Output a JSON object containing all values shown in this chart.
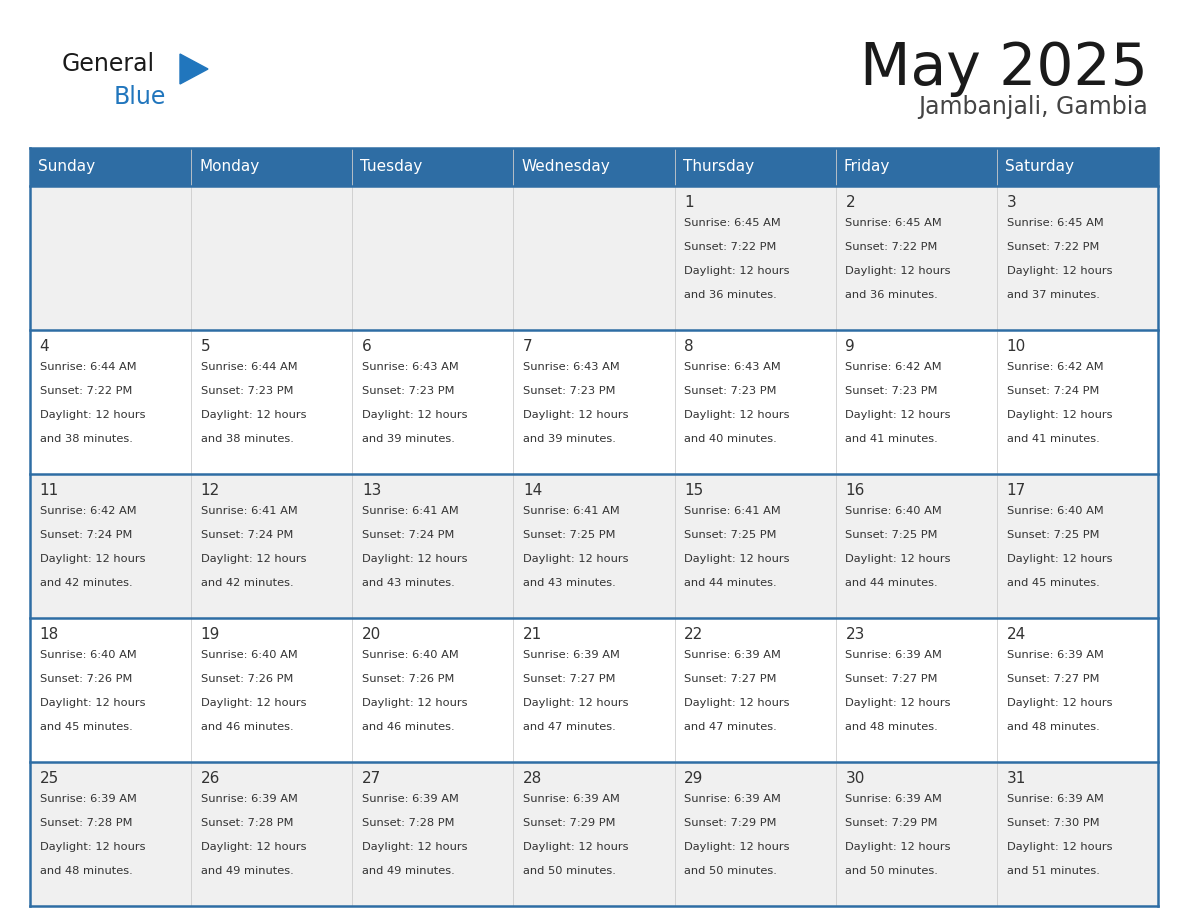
{
  "title": "May 2025",
  "subtitle": "Jambanjali, Gambia",
  "days_of_week": [
    "Sunday",
    "Monday",
    "Tuesday",
    "Wednesday",
    "Thursday",
    "Friday",
    "Saturday"
  ],
  "header_bg": "#2E6DA4",
  "header_text": "#FFFFFF",
  "row_bg_odd": "#F0F0F0",
  "row_bg_even": "#FFFFFF",
  "cell_border": "#2E6DA4",
  "day_number_color": "#333333",
  "info_text_color": "#333333",
  "title_color": "#1a1a1a",
  "subtitle_color": "#444444",
  "logo_general_color": "#1a1a1a",
  "logo_blue_color": "#2176BD",
  "bg_color": "#FFFFFF",
  "calendar_data": [
    {
      "day": 1,
      "col": 4,
      "row": 0,
      "sunrise": "6:45 AM",
      "sunset": "7:22 PM",
      "daylight": "12 hours and 36 minutes."
    },
    {
      "day": 2,
      "col": 5,
      "row": 0,
      "sunrise": "6:45 AM",
      "sunset": "7:22 PM",
      "daylight": "12 hours and 36 minutes."
    },
    {
      "day": 3,
      "col": 6,
      "row": 0,
      "sunrise": "6:45 AM",
      "sunset": "7:22 PM",
      "daylight": "12 hours and 37 minutes."
    },
    {
      "day": 4,
      "col": 0,
      "row": 1,
      "sunrise": "6:44 AM",
      "sunset": "7:22 PM",
      "daylight": "12 hours and 38 minutes."
    },
    {
      "day": 5,
      "col": 1,
      "row": 1,
      "sunrise": "6:44 AM",
      "sunset": "7:23 PM",
      "daylight": "12 hours and 38 minutes."
    },
    {
      "day": 6,
      "col": 2,
      "row": 1,
      "sunrise": "6:43 AM",
      "sunset": "7:23 PM",
      "daylight": "12 hours and 39 minutes."
    },
    {
      "day": 7,
      "col": 3,
      "row": 1,
      "sunrise": "6:43 AM",
      "sunset": "7:23 PM",
      "daylight": "12 hours and 39 minutes."
    },
    {
      "day": 8,
      "col": 4,
      "row": 1,
      "sunrise": "6:43 AM",
      "sunset": "7:23 PM",
      "daylight": "12 hours and 40 minutes."
    },
    {
      "day": 9,
      "col": 5,
      "row": 1,
      "sunrise": "6:42 AM",
      "sunset": "7:23 PM",
      "daylight": "12 hours and 41 minutes."
    },
    {
      "day": 10,
      "col": 6,
      "row": 1,
      "sunrise": "6:42 AM",
      "sunset": "7:24 PM",
      "daylight": "12 hours and 41 minutes."
    },
    {
      "day": 11,
      "col": 0,
      "row": 2,
      "sunrise": "6:42 AM",
      "sunset": "7:24 PM",
      "daylight": "12 hours and 42 minutes."
    },
    {
      "day": 12,
      "col": 1,
      "row": 2,
      "sunrise": "6:41 AM",
      "sunset": "7:24 PM",
      "daylight": "12 hours and 42 minutes."
    },
    {
      "day": 13,
      "col": 2,
      "row": 2,
      "sunrise": "6:41 AM",
      "sunset": "7:24 PM",
      "daylight": "12 hours and 43 minutes."
    },
    {
      "day": 14,
      "col": 3,
      "row": 2,
      "sunrise": "6:41 AM",
      "sunset": "7:25 PM",
      "daylight": "12 hours and 43 minutes."
    },
    {
      "day": 15,
      "col": 4,
      "row": 2,
      "sunrise": "6:41 AM",
      "sunset": "7:25 PM",
      "daylight": "12 hours and 44 minutes."
    },
    {
      "day": 16,
      "col": 5,
      "row": 2,
      "sunrise": "6:40 AM",
      "sunset": "7:25 PM",
      "daylight": "12 hours and 44 minutes."
    },
    {
      "day": 17,
      "col": 6,
      "row": 2,
      "sunrise": "6:40 AM",
      "sunset": "7:25 PM",
      "daylight": "12 hours and 45 minutes."
    },
    {
      "day": 18,
      "col": 0,
      "row": 3,
      "sunrise": "6:40 AM",
      "sunset": "7:26 PM",
      "daylight": "12 hours and 45 minutes."
    },
    {
      "day": 19,
      "col": 1,
      "row": 3,
      "sunrise": "6:40 AM",
      "sunset": "7:26 PM",
      "daylight": "12 hours and 46 minutes."
    },
    {
      "day": 20,
      "col": 2,
      "row": 3,
      "sunrise": "6:40 AM",
      "sunset": "7:26 PM",
      "daylight": "12 hours and 46 minutes."
    },
    {
      "day": 21,
      "col": 3,
      "row": 3,
      "sunrise": "6:39 AM",
      "sunset": "7:27 PM",
      "daylight": "12 hours and 47 minutes."
    },
    {
      "day": 22,
      "col": 4,
      "row": 3,
      "sunrise": "6:39 AM",
      "sunset": "7:27 PM",
      "daylight": "12 hours and 47 minutes."
    },
    {
      "day": 23,
      "col": 5,
      "row": 3,
      "sunrise": "6:39 AM",
      "sunset": "7:27 PM",
      "daylight": "12 hours and 48 minutes."
    },
    {
      "day": 24,
      "col": 6,
      "row": 3,
      "sunrise": "6:39 AM",
      "sunset": "7:27 PM",
      "daylight": "12 hours and 48 minutes."
    },
    {
      "day": 25,
      "col": 0,
      "row": 4,
      "sunrise": "6:39 AM",
      "sunset": "7:28 PM",
      "daylight": "12 hours and 48 minutes."
    },
    {
      "day": 26,
      "col": 1,
      "row": 4,
      "sunrise": "6:39 AM",
      "sunset": "7:28 PM",
      "daylight": "12 hours and 49 minutes."
    },
    {
      "day": 27,
      "col": 2,
      "row": 4,
      "sunrise": "6:39 AM",
      "sunset": "7:28 PM",
      "daylight": "12 hours and 49 minutes."
    },
    {
      "day": 28,
      "col": 3,
      "row": 4,
      "sunrise": "6:39 AM",
      "sunset": "7:29 PM",
      "daylight": "12 hours and 50 minutes."
    },
    {
      "day": 29,
      "col": 4,
      "row": 4,
      "sunrise": "6:39 AM",
      "sunset": "7:29 PM",
      "daylight": "12 hours and 50 minutes."
    },
    {
      "day": 30,
      "col": 5,
      "row": 4,
      "sunrise": "6:39 AM",
      "sunset": "7:29 PM",
      "daylight": "12 hours and 50 minutes."
    },
    {
      "day": 31,
      "col": 6,
      "row": 4,
      "sunrise": "6:39 AM",
      "sunset": "7:30 PM",
      "daylight": "12 hours and 51 minutes."
    }
  ]
}
